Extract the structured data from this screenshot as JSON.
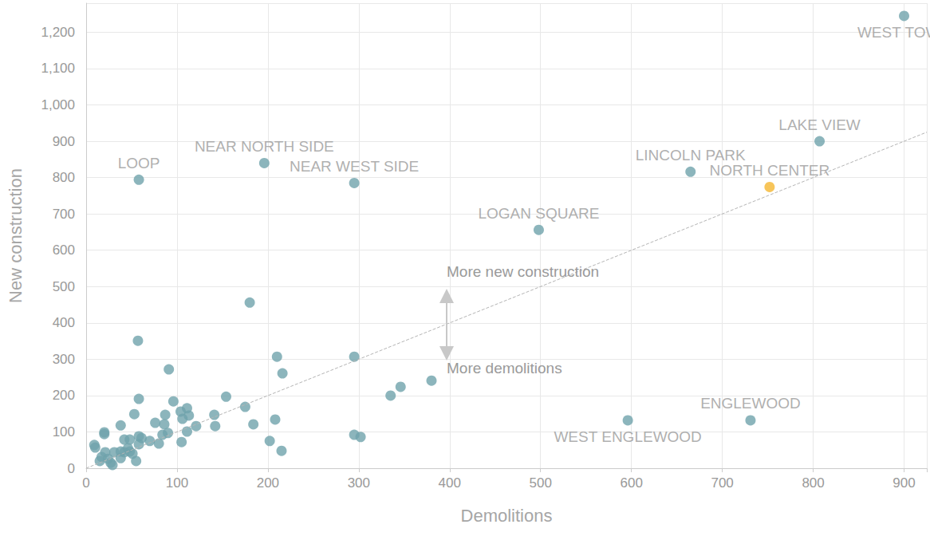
{
  "chart_data": {
    "type": "scatter",
    "x_label": "Demolitions",
    "y_label": "New construction",
    "x": [
      900,
      807,
      665,
      752,
      498,
      58,
      196,
      295,
      596,
      731,
      180,
      57,
      91,
      210,
      216,
      295,
      380,
      346,
      335,
      154,
      58,
      96,
      175,
      53,
      111,
      87,
      141,
      104,
      113,
      106,
      208,
      76,
      121,
      142,
      184,
      38,
      86,
      111,
      90,
      84,
      295,
      302,
      202,
      105,
      58,
      61,
      48,
      42,
      70,
      80,
      58,
      20,
      20,
      10,
      9,
      38,
      31,
      46,
      21,
      17,
      24,
      15,
      27,
      29,
      38,
      48,
      55,
      215,
      42,
      51
    ],
    "values": [
      1245,
      900,
      816,
      774,
      656,
      794,
      840,
      785,
      132,
      132,
      456,
      351,
      272,
      307,
      261,
      307,
      241,
      224,
      200,
      197,
      191,
      184,
      169,
      149,
      165,
      147,
      147,
      156,
      145,
      136,
      134,
      125,
      116,
      116,
      121,
      118,
      121,
      101,
      97,
      92,
      92,
      86,
      75,
      72,
      88,
      83,
      79,
      79,
      75,
      68,
      66,
      94,
      99,
      57,
      64,
      46,
      44,
      55,
      44,
      31,
      26,
      20,
      15,
      9,
      28,
      46,
      20,
      48,
      44,
      40
    ],
    "labels": [
      "WEST TOWN",
      "LAKE VIEW",
      "LINCOLN PARK",
      "NORTH CENTER",
      "LOGAN SQUARE",
      "LOOP",
      "NEAR NORTH SIDE",
      "NEAR WEST SIDE",
      "WEST ENGLEWOOD",
      "ENGLEWOOD",
      null,
      null,
      null,
      null,
      null,
      null,
      null,
      null,
      null,
      null,
      null,
      null,
      null,
      null,
      null,
      null,
      null,
      null,
      null,
      null,
      null,
      null,
      null,
      null,
      null,
      null,
      null,
      null,
      null,
      null,
      null,
      null,
      null,
      null,
      null,
      null,
      null,
      null,
      null,
      null,
      null,
      null,
      null,
      null,
      null,
      null,
      null,
      null,
      null,
      null,
      null,
      null,
      null,
      null,
      null,
      null,
      null,
      null,
      null,
      null
    ],
    "colors": [
      "#6fa3ab",
      "#6fa3ab",
      "#6fa3ab",
      "#f5b731",
      "#6fa3ab",
      "#6fa3ab",
      "#6fa3ab",
      "#6fa3ab",
      "#6fa3ab",
      "#6fa3ab",
      "#6fa3ab",
      "#6fa3ab",
      "#6fa3ab",
      "#6fa3ab",
      "#6fa3ab",
      "#6fa3ab",
      "#6fa3ab",
      "#6fa3ab",
      "#6fa3ab",
      "#6fa3ab",
      "#6fa3ab",
      "#6fa3ab",
      "#6fa3ab",
      "#6fa3ab",
      "#6fa3ab",
      "#6fa3ab",
      "#6fa3ab",
      "#6fa3ab",
      "#6fa3ab",
      "#6fa3ab",
      "#6fa3ab",
      "#6fa3ab",
      "#6fa3ab",
      "#6fa3ab",
      "#6fa3ab",
      "#6fa3ab",
      "#6fa3ab",
      "#6fa3ab",
      "#6fa3ab",
      "#6fa3ab",
      "#6fa3ab",
      "#6fa3ab",
      "#6fa3ab",
      "#6fa3ab",
      "#6fa3ab",
      "#6fa3ab",
      "#6fa3ab",
      "#6fa3ab",
      "#6fa3ab",
      "#6fa3ab",
      "#6fa3ab",
      "#6fa3ab",
      "#6fa3ab",
      "#6fa3ab",
      "#6fa3ab",
      "#6fa3ab",
      "#6fa3ab",
      "#6fa3ab",
      "#6fa3ab",
      "#6fa3ab",
      "#6fa3ab",
      "#6fa3ab",
      "#6fa3ab",
      "#6fa3ab",
      "#6fa3ab",
      "#6fa3ab",
      "#6fa3ab",
      "#6fa3ab",
      "#6fa3ab",
      "#6fa3ab"
    ],
    "xlim": [
      0,
      925
    ],
    "xticks": [
      0,
      100,
      200,
      300,
      400,
      500,
      600,
      700,
      800,
      900
    ],
    "ylim": [
      0,
      1280
    ],
    "yticks": [
      0,
      100,
      200,
      300,
      400,
      500,
      600,
      700,
      800,
      900,
      {
        "value": 1000,
        "label": "1,000"
      },
      {
        "value": 1100,
        "label": "1,100"
      },
      {
        "value": 1200,
        "label": "1,200"
      }
    ],
    "annotations": [
      "More new construction",
      "More demolitions"
    ],
    "grid": true
  }
}
